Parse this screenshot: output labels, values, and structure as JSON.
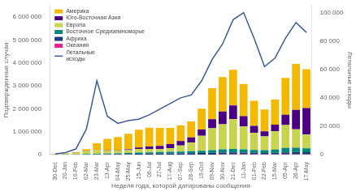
{
  "chart_data": {
    "type": "bar",
    "categories": [
      "30-Dec",
      "20-Jan",
      "10-Feb",
      "02-Mar",
      "23-Mar",
      "13-Apr",
      "04-May",
      "25-May",
      "15-Jun",
      "06-Jul",
      "27-Jul",
      "17-Aug",
      "07-Sep",
      "28-Sep",
      "19-Oct",
      "09-Nov",
      "30-Nov",
      "21-Dec",
      "11-Jan",
      "01-Feb",
      "22-Feb",
      "15-Mar",
      "05-Apr",
      "26-Apr",
      "17-May"
    ],
    "xlabel": "Неделя года, которой датированы сообщения",
    "ylabel": "Подтвержденные случаи",
    "y2label": "Летальные исходы",
    "stacked": true,
    "grid": false,
    "legend": "upper left",
    "ylim": [
      0,
      6500000
    ],
    "yticks": [
      0,
      {
        "value": 1000000,
        "label": "1 000 000"
      },
      {
        "value": 2000000,
        "label": "2 000 000"
      },
      {
        "value": 3000000,
        "label": "3 000 000"
      },
      {
        "value": 4000000,
        "label": "4 000 000"
      },
      {
        "value": 5000000,
        "label": "5 000 000"
      },
      {
        "value": 6000000,
        "label": "6 000 000"
      }
    ],
    "y2lim": [
      0,
      105000
    ],
    "y2ticks": [
      0,
      {
        "value": 20000,
        "label": "20 000"
      },
      {
        "value": 40000,
        "label": "40 000"
      },
      {
        "value": 60000,
        "label": "60 000"
      },
      {
        "value": 80000,
        "label": "80 000"
      },
      {
        "value": 100000,
        "label": "100 000"
      }
    ],
    "series": [
      {
        "name": "Океания",
        "color": "#E91E8C",
        "values": [
          300,
          400,
          500,
          600,
          800,
          1000,
          1200,
          1500,
          2000,
          2500,
          3000,
          3500,
          4000,
          4500,
          5000,
          6000,
          7000,
          8000,
          9000,
          10000,
          11000,
          12000,
          13000,
          14000,
          15000
        ]
      },
      {
        "name": "Африка",
        "color": "#1A3A7A",
        "values": [
          1000,
          2000,
          3000,
          5000,
          8000,
          15000,
          25000,
          30000,
          35000,
          42000,
          45000,
          48000,
          52000,
          58000,
          65000,
          72000,
          82000,
          90000,
          82000,
          72000,
          65000,
          72000,
          90000,
          100000,
          92000
        ]
      },
      {
        "name": "Восточное Средиземноморье",
        "color": "#00897B",
        "values": [
          3000,
          5000,
          10000,
          20000,
          25000,
          28000,
          32000,
          38000,
          50000,
          58000,
          65000,
          72000,
          80000,
          88000,
          100000,
          120000,
          140000,
          150000,
          140000,
          120000,
          120000,
          140000,
          190000,
          190000,
          170000
        ]
      },
      {
        "name": "Европа",
        "color": "#C8D44E",
        "values": [
          20000,
          40000,
          70000,
          130000,
          170000,
          130000,
          110000,
          130000,
          160000,
          150000,
          130000,
          160000,
          260000,
          380000,
          650000,
          950000,
          1100000,
          1300000,
          1000000,
          750000,
          600000,
          800000,
          1000000,
          800000,
          600000
        ]
      },
      {
        "name": "Юго-Восточная Азия",
        "color": "#4B0082",
        "values": [
          2000,
          3000,
          5000,
          8000,
          10000,
          15000,
          20000,
          35000,
          60000,
          100000,
          140000,
          180000,
          200000,
          220000,
          280000,
          400000,
          550000,
          600000,
          450000,
          300000,
          220000,
          280000,
          450000,
          850000,
          1150000
        ]
      },
      {
        "name": "Америка",
        "color": "#F5B800",
        "values": [
          10000,
          15000,
          25000,
          80000,
          280000,
          500000,
          580000,
          680000,
          780000,
          820000,
          780000,
          700000,
          680000,
          700000,
          900000,
          1350000,
          1500000,
          1550000,
          1400000,
          1100000,
          950000,
          1100000,
          1600000,
          2000000,
          1700000
        ]
      },
      {
        "name": "Летальные\nисходы",
        "color": "#3C5A96",
        "type": "line",
        "axis": "y2",
        "values": [
          400,
          1500,
          4000,
          18000,
          52000,
          27000,
          22000,
          24000,
          25000,
          28000,
          32000,
          36000,
          40000,
          42000,
          52000,
          67000,
          78000,
          95000,
          100000,
          82000,
          62000,
          68000,
          82000,
          93000,
          86000
        ]
      }
    ]
  }
}
